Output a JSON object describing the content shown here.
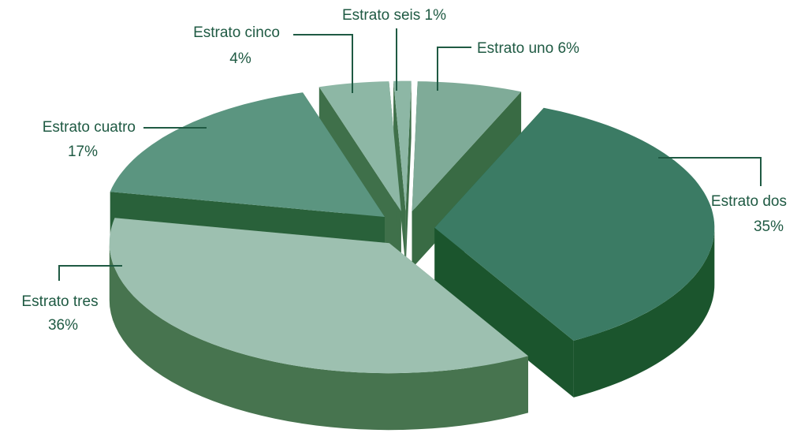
{
  "chart_data": {
    "type": "pie3d",
    "categories": [
      "Estrato uno",
      "Estrato dos",
      "Estrato tres",
      "Estrato cuatro",
      "Estrato cinco",
      "Estrato seis"
    ],
    "values": [
      6,
      35,
      36,
      17,
      4,
      1
    ],
    "value_labels": [
      "6%",
      "35%",
      "36%",
      "17%",
      "4%",
      "1%"
    ],
    "colors": [
      "#7fab98",
      "#3b7b64",
      "#9dc0b0",
      "#5b9580",
      "#8db7a5",
      "#8db7a5"
    ]
  }
}
